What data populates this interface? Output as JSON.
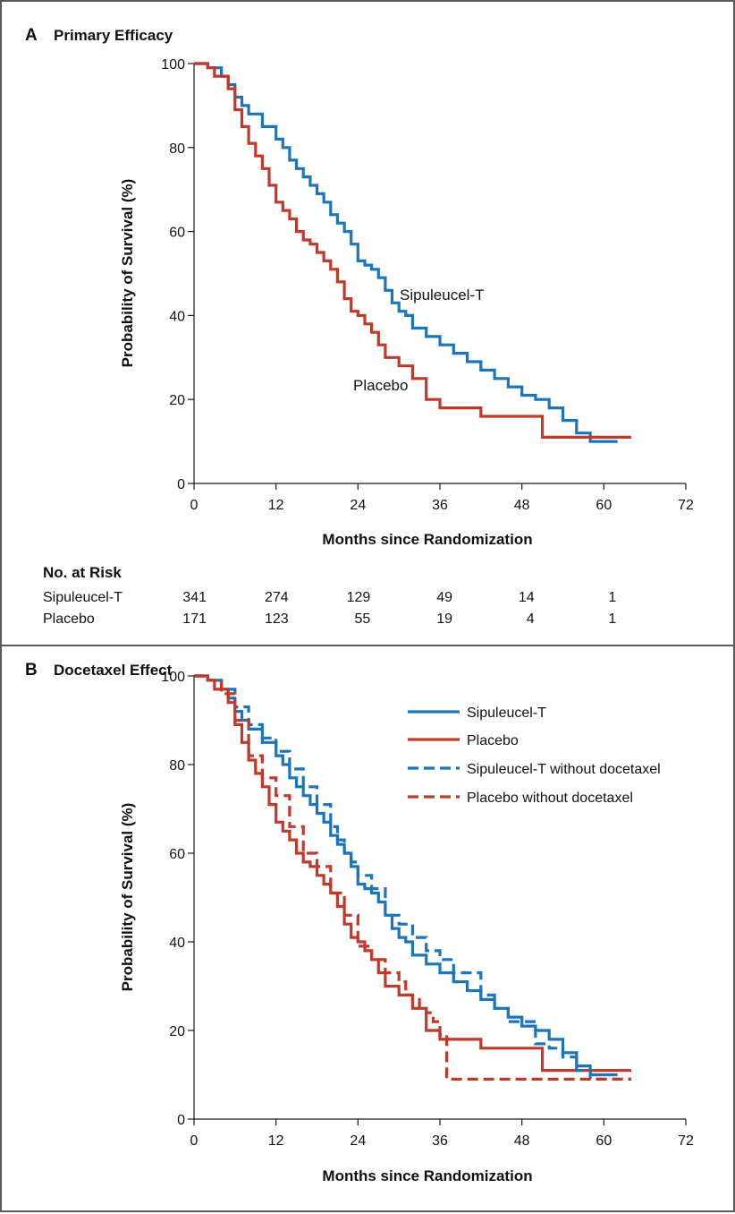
{
  "colors": {
    "sipuleucel": "#1b75bc",
    "placebo": "#c1392b"
  },
  "panel_a": {
    "letter": "A",
    "title": "Primary Efficacy"
  },
  "panel_b": {
    "letter": "B",
    "title": "Docetaxel Effect"
  },
  "risk_table": {
    "title": "No. at Risk",
    "rows": [
      {
        "label": "Sipuleucel-T",
        "values": [
          "341",
          "274",
          "129",
          "49",
          "14",
          "1"
        ]
      },
      {
        "label": "Placebo",
        "values": [
          "171",
          "123",
          "55",
          "19",
          "4",
          "1"
        ]
      }
    ]
  },
  "chart_data": [
    {
      "type": "line",
      "panel": "A",
      "title": "Primary Efficacy",
      "xlabel": "Months since Randomization",
      "ylabel": "Probability of Survival (%)",
      "xlim": [
        0,
        72
      ],
      "ylim": [
        0,
        100
      ],
      "xticks": [
        "0",
        "12",
        "24",
        "36",
        "48",
        "60",
        "72"
      ],
      "yticks": [
        "0",
        "20",
        "40",
        "60",
        "80",
        "100"
      ],
      "annotations": [
        "Sipuleucel-T",
        "Placebo"
      ],
      "series": [
        {
          "name": "Sipuleucel-T",
          "style": "solid",
          "color": "#1b75bc",
          "x": [
            0,
            2,
            4,
            5,
            6,
            7,
            8,
            10,
            12,
            13,
            14,
            15,
            16,
            17,
            18,
            19,
            20,
            21,
            22,
            23,
            24,
            25,
            26,
            27,
            28,
            29,
            30,
            31,
            32,
            34,
            36,
            38,
            40,
            42,
            44,
            46,
            48,
            50,
            52,
            54,
            56,
            58,
            60,
            62
          ],
          "y": [
            100,
            99,
            97,
            95,
            92,
            90,
            88,
            85,
            82,
            80,
            77,
            75,
            73,
            71,
            69,
            67,
            64,
            62,
            60,
            57,
            53,
            52,
            51,
            49,
            46,
            43,
            41,
            40,
            37,
            35,
            33,
            31,
            29,
            27,
            25,
            23,
            21,
            20,
            18,
            15,
            12,
            10,
            10,
            10
          ]
        },
        {
          "name": "Placebo",
          "style": "solid",
          "color": "#c1392b",
          "x": [
            0,
            2,
            3,
            5,
            6,
            7,
            8,
            9,
            10,
            11,
            12,
            13,
            14,
            15,
            16,
            17,
            18,
            19,
            20,
            21,
            22,
            23,
            24,
            25,
            26,
            27,
            28,
            29,
            30,
            32,
            34,
            36,
            38,
            40,
            42,
            44,
            46,
            48,
            50,
            51,
            52,
            54,
            56,
            58,
            60,
            62,
            64
          ],
          "y": [
            100,
            99,
            97,
            94,
            89,
            85,
            81,
            78,
            75,
            71,
            67,
            65,
            63,
            60,
            58,
            57,
            55,
            53,
            51,
            48,
            44,
            41,
            40,
            38,
            36,
            33,
            30,
            30,
            28,
            25,
            20,
            18,
            18,
            18,
            16,
            16,
            16,
            16,
            16,
            11,
            11,
            11,
            11,
            11,
            11,
            11,
            11
          ]
        }
      ]
    },
    {
      "type": "line",
      "panel": "B",
      "title": "Docetaxel Effect",
      "xlabel": "Months since Randomization",
      "ylabel": "Probability of Survival (%)",
      "xlim": [
        0,
        72
      ],
      "ylim": [
        0,
        100
      ],
      "xticks": [
        "0",
        "12",
        "24",
        "36",
        "48",
        "60",
        "72"
      ],
      "yticks": [
        "0",
        "20",
        "40",
        "60",
        "80",
        "100"
      ],
      "legend": [
        "Sipuleucel-T",
        "Placebo",
        "Sipuleucel-T without docetaxel",
        "Placebo without docetaxel"
      ],
      "legend_position": "top-right",
      "series": [
        {
          "name": "Sipuleucel-T",
          "style": "solid",
          "color": "#1b75bc",
          "x": [
            0,
            2,
            4,
            5,
            6,
            7,
            8,
            10,
            12,
            13,
            14,
            15,
            16,
            17,
            18,
            19,
            20,
            21,
            22,
            23,
            24,
            25,
            26,
            27,
            28,
            29,
            30,
            31,
            32,
            34,
            36,
            38,
            40,
            42,
            44,
            46,
            48,
            50,
            52,
            54,
            56,
            58,
            60,
            62
          ],
          "y": [
            100,
            99,
            97,
            95,
            92,
            90,
            88,
            85,
            82,
            80,
            77,
            75,
            73,
            71,
            69,
            67,
            64,
            62,
            60,
            57,
            53,
            52,
            51,
            49,
            46,
            43,
            41,
            40,
            37,
            35,
            33,
            31,
            29,
            27,
            25,
            23,
            21,
            20,
            18,
            15,
            12,
            10,
            10,
            10
          ]
        },
        {
          "name": "Placebo",
          "style": "solid",
          "color": "#c1392b",
          "x": [
            0,
            2,
            3,
            5,
            6,
            7,
            8,
            9,
            10,
            11,
            12,
            13,
            14,
            15,
            16,
            17,
            18,
            19,
            20,
            21,
            22,
            23,
            24,
            25,
            26,
            27,
            28,
            29,
            30,
            32,
            34,
            36,
            38,
            40,
            42,
            44,
            46,
            48,
            50,
            51,
            52,
            54,
            56,
            58,
            60,
            62,
            64
          ],
          "y": [
            100,
            99,
            97,
            94,
            89,
            85,
            81,
            78,
            75,
            71,
            67,
            65,
            63,
            60,
            58,
            57,
            55,
            53,
            51,
            48,
            44,
            41,
            40,
            38,
            36,
            33,
            30,
            30,
            28,
            25,
            20,
            18,
            18,
            18,
            16,
            16,
            16,
            16,
            16,
            11,
            11,
            11,
            11,
            11,
            11,
            11,
            11
          ]
        },
        {
          "name": "Sipuleucel-T without docetaxel",
          "style": "dashed",
          "color": "#1b75bc",
          "x": [
            0,
            2,
            4,
            6,
            8,
            10,
            12,
            14,
            16,
            18,
            20,
            21,
            22,
            23,
            24,
            25,
            26,
            28,
            30,
            32,
            34,
            36,
            38,
            40,
            42,
            44,
            46,
            48,
            50,
            52,
            54,
            56,
            58,
            60,
            62,
            64
          ],
          "y": [
            100,
            99,
            97,
            93,
            89,
            86,
            83,
            79,
            75,
            71,
            66,
            63,
            60,
            58,
            55,
            55,
            52,
            46,
            44,
            41,
            38,
            36,
            33,
            33,
            28,
            25,
            22,
            22,
            17,
            16,
            14,
            11,
            9,
            9,
            9,
            9
          ]
        },
        {
          "name": "Placebo without docetaxel",
          "style": "dashed",
          "color": "#c1392b",
          "x": [
            0,
            2,
            4,
            6,
            8,
            10,
            12,
            14,
            16,
            18,
            20,
            22,
            24,
            26,
            28,
            30,
            31,
            32,
            33,
            34,
            35,
            36,
            37,
            40,
            44,
            48,
            52,
            56,
            60,
            64
          ],
          "y": [
            100,
            99,
            96,
            90,
            82,
            77,
            73,
            66,
            60,
            57,
            51,
            46,
            39,
            36,
            33,
            31,
            28,
            27,
            25,
            24,
            22,
            19,
            9,
            9,
            9,
            9,
            9,
            9,
            9,
            9
          ]
        }
      ]
    }
  ]
}
